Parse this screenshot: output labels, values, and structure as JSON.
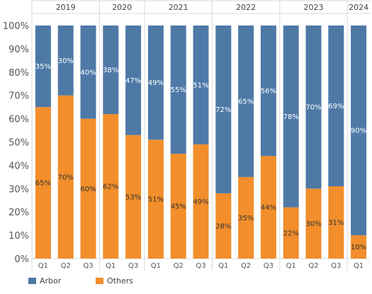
{
  "chart_data": {
    "type": "bar",
    "stacked": true,
    "normalized": true,
    "years": [
      "2019",
      "2020",
      "2021",
      "2022",
      "2023",
      "2024"
    ],
    "categories": [
      {
        "year": "2019",
        "quarter": "Q1"
      },
      {
        "year": "2019",
        "quarter": "Q2"
      },
      {
        "year": "2019",
        "quarter": "Q3"
      },
      {
        "year": "2020",
        "quarter": "Q1"
      },
      {
        "year": "2020",
        "quarter": "Q3"
      },
      {
        "year": "2021",
        "quarter": "Q1"
      },
      {
        "year": "2021",
        "quarter": "Q2"
      },
      {
        "year": "2021",
        "quarter": "Q3"
      },
      {
        "year": "2022",
        "quarter": "Q1"
      },
      {
        "year": "2022",
        "quarter": "Q2"
      },
      {
        "year": "2022",
        "quarter": "Q3"
      },
      {
        "year": "2023",
        "quarter": "Q1"
      },
      {
        "year": "2023",
        "quarter": "Q2"
      },
      {
        "year": "2023",
        "quarter": "Q3"
      },
      {
        "year": "2024",
        "quarter": "Q1"
      }
    ],
    "series": [
      {
        "name": "Arbor",
        "color": "#4e79a7",
        "values": [
          35,
          30,
          40,
          38,
          47,
          49,
          55,
          51,
          72,
          65,
          56,
          78,
          70,
          69,
          90
        ]
      },
      {
        "name": "Others",
        "color": "#f28e2b",
        "values": [
          65,
          70,
          60,
          62,
          53,
          51,
          45,
          49,
          28,
          35,
          44,
          22,
          30,
          31,
          10
        ]
      }
    ],
    "yticks": [
      "0%",
      "10%",
      "20%",
      "30%",
      "40%",
      "50%",
      "60%",
      "70%",
      "80%",
      "90%",
      "100%"
    ],
    "ylim": [
      0,
      100
    ],
    "value_suffix": "%",
    "legend_position": "bottom-left",
    "grid": false
  }
}
